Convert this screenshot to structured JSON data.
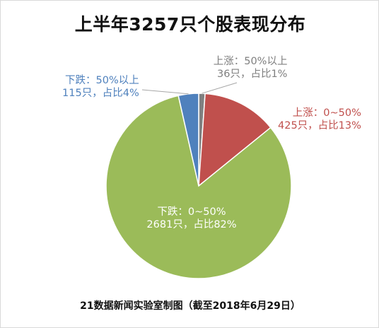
{
  "chart_data": {
    "type": "pie",
    "title": "上半年3257只个股表现分布",
    "total": 3257,
    "slices": [
      {
        "label": "上涨：50%以上",
        "value": 36,
        "percent_label": "36只，占比1%",
        "color": "#808080",
        "label_color": "#7f7f7f"
      },
      {
        "label": "上涨：0~50%",
        "value": 425,
        "percent_label": "425只，占比13%",
        "color": "#c0504d",
        "label_color": "#c0504d"
      },
      {
        "label": "下跌：0~50%",
        "value": 2681,
        "percent_label": "2681只，占比82%",
        "color": "#9bbb59",
        "label_color": "#ffffff"
      },
      {
        "label": "下跌：50%以上",
        "value": 115,
        "percent_label": "115只，占比4%",
        "color": "#4f81bd",
        "label_color": "#4f81bd"
      }
    ]
  },
  "footer": "21数据新闻实验室制图（截至2018年6月29日）"
}
